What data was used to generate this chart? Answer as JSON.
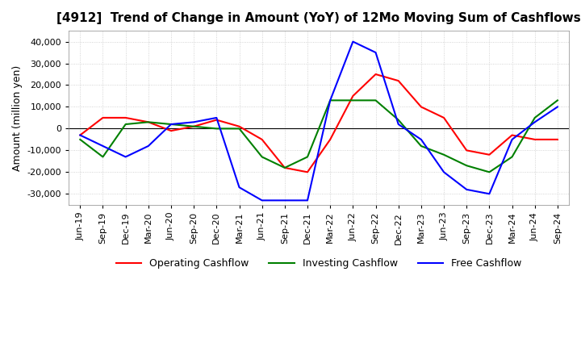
{
  "title": "[4912]  Trend of Change in Amount (YoY) of 12Mo Moving Sum of Cashflows",
  "ylabel": "Amount (million yen)",
  "ylim": [
    -35000,
    45000
  ],
  "yticks": [
    -30000,
    -20000,
    -10000,
    0,
    10000,
    20000,
    30000,
    40000
  ],
  "x_labels": [
    "Jun-19",
    "Sep-19",
    "Dec-19",
    "Mar-20",
    "Jun-20",
    "Sep-20",
    "Dec-20",
    "Mar-21",
    "Jun-21",
    "Sep-21",
    "Dec-21",
    "Mar-22",
    "Jun-22",
    "Sep-22",
    "Dec-22",
    "Mar-23",
    "Jun-23",
    "Sep-23",
    "Dec-23",
    "Mar-24",
    "Jun-24",
    "Sep-24"
  ],
  "operating": [
    -3000,
    5000,
    5000,
    3000,
    -1000,
    1000,
    4000,
    1000,
    -5000,
    -18000,
    -20000,
    -5000,
    15000,
    25000,
    22000,
    10000,
    5000,
    -10000,
    -12000,
    -3000,
    -5000,
    -5000
  ],
  "investing": [
    -5000,
    -13000,
    2000,
    3000,
    2000,
    1000,
    0,
    0,
    -13000,
    -18000,
    -13000,
    13000,
    13000,
    13000,
    4000,
    -8000,
    -12000,
    -17000,
    -20000,
    -13000,
    5000,
    13000
  ],
  "free": [
    -3000,
    -8000,
    -13000,
    -8000,
    2000,
    3000,
    5000,
    -27000,
    -33000,
    -33000,
    -33000,
    13000,
    40000,
    35000,
    2000,
    -5000,
    -20000,
    -28000,
    -30000,
    -5000,
    3000,
    10000
  ],
  "colors": {
    "operating": "#ff0000",
    "investing": "#008000",
    "free": "#0000ff"
  },
  "legend_labels": [
    "Operating Cashflow",
    "Investing Cashflow",
    "Free Cashflow"
  ],
  "background_color": "#ffffff",
  "grid_color": "#c8c8c8"
}
